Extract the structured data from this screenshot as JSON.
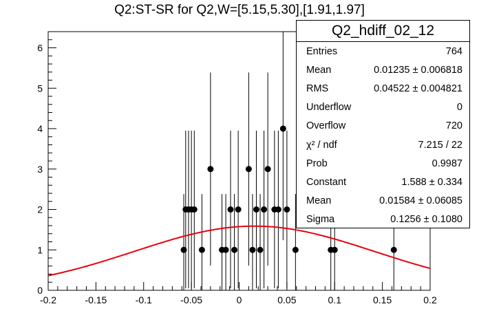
{
  "chart_data": {
    "type": "scatter",
    "title": "Q2:ST-SR for Q2,W=[5.15,5.30],[1.91,1.97]",
    "xlim": [
      -0.2,
      0.2
    ],
    "ylim": [
      0,
      6.4
    ],
    "x_ticks": [
      "-0.2",
      "-0.15",
      "-0.1",
      "-0.05",
      "0",
      "0.05",
      "0.1",
      "0.15",
      "0.2"
    ],
    "x_tick_values": [
      -0.2,
      -0.15,
      -0.1,
      -0.05,
      0,
      0.05,
      0.1,
      0.15,
      0.2
    ],
    "y_ticks": [
      "0",
      "1",
      "2",
      "3",
      "4",
      "5",
      "6"
    ],
    "y_tick_values": [
      0,
      1,
      2,
      3,
      4,
      5,
      6
    ],
    "points": [
      {
        "x": -0.058,
        "y": 1
      },
      {
        "x": -0.056,
        "y": 2
      },
      {
        "x": -0.053,
        "y": 2
      },
      {
        "x": -0.05,
        "y": 2
      },
      {
        "x": -0.047,
        "y": 2
      },
      {
        "x": -0.039,
        "y": 1
      },
      {
        "x": -0.03,
        "y": 3
      },
      {
        "x": -0.018,
        "y": 1
      },
      {
        "x": -0.014,
        "y": 1
      },
      {
        "x": -0.009,
        "y": 2
      },
      {
        "x": -0.005,
        "y": 1
      },
      {
        "x": -0.001,
        "y": 2
      },
      {
        "x": 0.01,
        "y": 3
      },
      {
        "x": 0.014,
        "y": 1
      },
      {
        "x": 0.018,
        "y": 2
      },
      {
        "x": 0.022,
        "y": 1
      },
      {
        "x": 0.026,
        "y": 2
      },
      {
        "x": 0.03,
        "y": 3
      },
      {
        "x": 0.037,
        "y": 2
      },
      {
        "x": 0.041,
        "y": 2
      },
      {
        "x": 0.046,
        "y": 4
      },
      {
        "x": 0.05,
        "y": 2
      },
      {
        "x": 0.059,
        "y": 1
      },
      {
        "x": 0.096,
        "y": 1
      },
      {
        "x": 0.1,
        "y": 1
      },
      {
        "x": 0.162,
        "y": 1
      }
    ],
    "fit": {
      "constant": 1.588,
      "mean": 0.01584,
      "sigma": 0.1256
    },
    "grid": false,
    "legend": "top-right"
  },
  "stats_box": {
    "title": "Q2_hdiff_02_12",
    "rows": [
      {
        "label": "Entries",
        "value": "764"
      },
      {
        "label": "Mean",
        "value": "0.01235 ± 0.006818"
      },
      {
        "label": "RMS",
        "value": "0.04522 ± 0.004821"
      },
      {
        "label": "Underflow",
        "value": "0"
      },
      {
        "label": "Overflow",
        "value": "720"
      },
      {
        "label": "χ² / ndf",
        "value": "7.215 / 22"
      },
      {
        "label": "Prob",
        "value": "0.9987"
      },
      {
        "label": "Constant",
        "value": "1.588 ± 0.334"
      },
      {
        "label": "Mean",
        "value": "0.01584 ± 0.06085"
      },
      {
        "label": "Sigma",
        "value": "0.1256 ± 0.1080"
      }
    ]
  },
  "colors": {
    "fit_line": "#e8000b",
    "markers": "#000000"
  }
}
